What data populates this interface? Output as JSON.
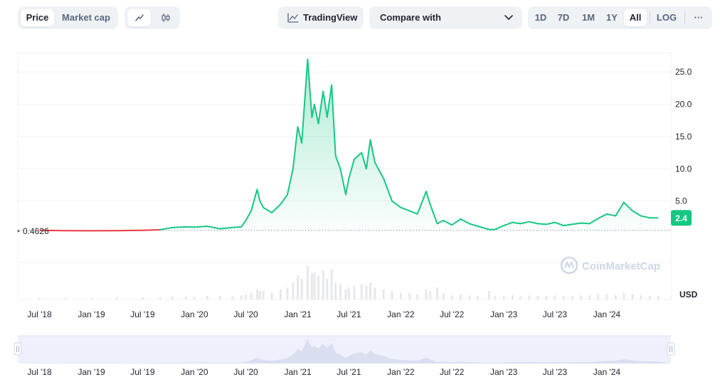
{
  "toolbar": {
    "type_tabs": [
      "Price",
      "Market cap"
    ],
    "active_type": "Price",
    "tradingview_label": "TradingView",
    "compare_label": "Compare with",
    "ranges": [
      "1D",
      "7D",
      "1M",
      "1Y",
      "All"
    ],
    "active_range": "All",
    "log_label": "LOG",
    "more_label": "···"
  },
  "watermark": "CoinMarketCap",
  "colors": {
    "up": "#16c784",
    "down": "#ea3943",
    "grid": "#eff2f5"
  },
  "chart_data": {
    "type": "line",
    "x_ticks": [
      "Jul '18",
      "Jan '19",
      "Jul '19",
      "Jan '20",
      "Jul '20",
      "Jan '21",
      "Jul '21",
      "Jan '22",
      "Jul '22",
      "Jan '23",
      "Jul '23",
      "Jan '24"
    ],
    "y_ticks": [
      "5.0",
      "10.0",
      "15.0",
      "20.0",
      "25.0"
    ],
    "ylim": [
      0,
      28
    ],
    "y_unit": "USD",
    "reference_value": "0.4626",
    "current_value": "2.4",
    "series": [
      {
        "x": [
          "2018-07-01",
          "2018-10-01",
          "2019-01-01",
          "2019-04-01",
          "2019-07-01",
          "2019-09-01",
          "2019-10-15",
          "2019-12-01",
          "2020-01-01",
          "2020-02-15",
          "2020-04-01",
          "2020-05-15",
          "2020-06-15",
          "2020-07-01",
          "2020-07-20",
          "2020-08-10",
          "2020-08-20",
          "2020-09-01",
          "2020-10-01",
          "2020-11-01",
          "2020-11-25",
          "2020-12-15",
          "2021-01-01",
          "2021-01-15",
          "2021-02-05",
          "2021-02-20",
          "2021-03-01",
          "2021-03-15",
          "2021-04-01",
          "2021-04-15",
          "2021-05-01",
          "2021-05-15",
          "2021-06-01",
          "2021-06-20",
          "2021-07-01",
          "2021-07-20",
          "2021-08-15",
          "2021-09-01",
          "2021-09-15",
          "2021-10-01",
          "2021-11-01",
          "2021-12-01",
          "2022-01-01",
          "2022-02-01",
          "2022-03-01",
          "2022-04-01",
          "2022-04-15",
          "2022-05-10",
          "2022-06-01",
          "2022-07-01",
          "2022-08-01",
          "2022-09-01",
          "2022-10-01",
          "2022-11-10",
          "2022-12-01",
          "2023-01-01",
          "2023-02-01",
          "2023-03-01",
          "2023-04-01",
          "2023-05-01",
          "2023-06-01",
          "2023-07-01",
          "2023-08-01",
          "2023-09-01",
          "2023-10-01",
          "2023-11-01",
          "2023-12-01",
          "2024-01-01",
          "2024-02-01",
          "2024-03-01",
          "2024-04-01",
          "2024-05-01",
          "2024-06-01",
          "2024-07-01"
        ],
        "y": [
          0.46,
          0.42,
          0.4,
          0.42,
          0.46,
          0.55,
          0.9,
          1.0,
          0.95,
          1.1,
          0.7,
          0.9,
          1.0,
          2.0,
          3.5,
          6.8,
          5.0,
          4.0,
          3.2,
          4.5,
          6.0,
          10.0,
          16.5,
          14.0,
          27.0,
          18.0,
          20.0,
          17.0,
          22.0,
          18.0,
          23.0,
          12.0,
          10.0,
          6.0,
          8.5,
          11.5,
          12.5,
          10.0,
          14.5,
          11.0,
          8.5,
          5.0,
          4.0,
          3.5,
          3.0,
          6.5,
          4.5,
          1.5,
          2.0,
          1.3,
          2.2,
          1.5,
          1.1,
          0.6,
          0.6,
          1.2,
          1.7,
          1.5,
          1.8,
          1.5,
          1.4,
          1.7,
          1.2,
          1.4,
          1.6,
          1.5,
          2.3,
          3.0,
          2.7,
          4.8,
          3.5,
          2.7,
          2.4,
          2.4
        ]
      }
    ],
    "volume": [
      0.05,
      0.05,
      0.05,
      0.05,
      0.06,
      0.06,
      0.08,
      0.08,
      0.08,
      0.1,
      0.1,
      0.1,
      0.12,
      0.15,
      0.2,
      0.3,
      0.25,
      0.25,
      0.2,
      0.3,
      0.35,
      0.5,
      0.7,
      0.6,
      1.0,
      0.75,
      0.8,
      0.7,
      0.85,
      0.6,
      0.9,
      0.5,
      0.45,
      0.3,
      0.35,
      0.4,
      0.45,
      0.4,
      0.5,
      0.35,
      0.3,
      0.25,
      0.2,
      0.18,
      0.15,
      0.3,
      0.25,
      0.35,
      0.18,
      0.12,
      0.15,
      0.12,
      0.1,
      0.25,
      0.1,
      0.1,
      0.12,
      0.1,
      0.12,
      0.1,
      0.1,
      0.12,
      0.1,
      0.1,
      0.12,
      0.12,
      0.15,
      0.15,
      0.12,
      0.2,
      0.15,
      0.12,
      0.1,
      0.1
    ]
  }
}
